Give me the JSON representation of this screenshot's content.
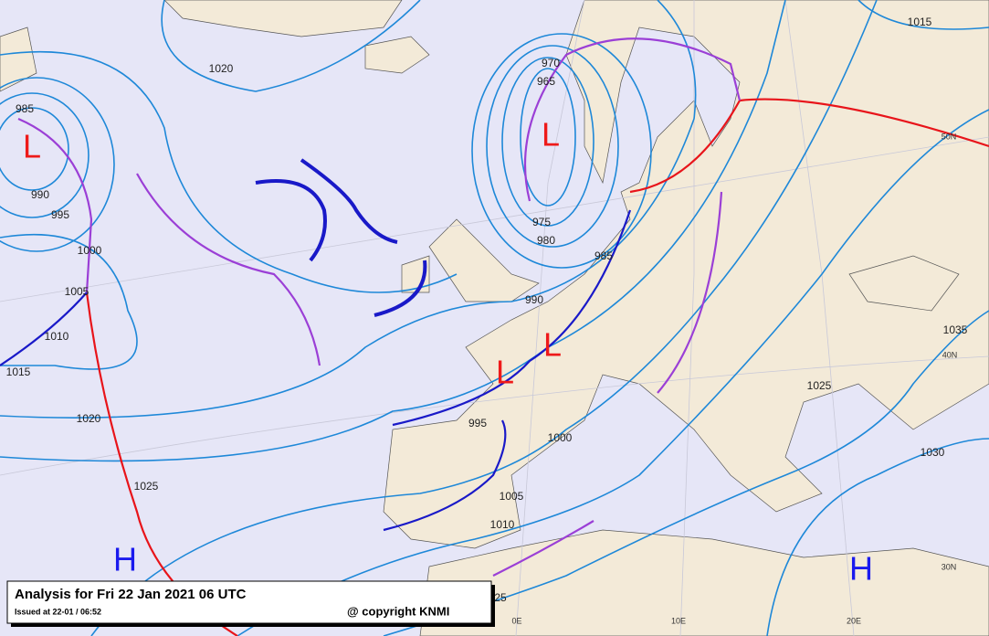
{
  "title_box": {
    "title": "Analysis for Fri 22 Jan 2021 06 UTC",
    "issued": "Issued at 22-01 / 06:52",
    "copyright": "@ copyright KNMI"
  },
  "pressure_centers": [
    "L",
    "L",
    "L",
    "L",
    "H",
    "H"
  ],
  "isobar_labels": [
    "1015",
    "1020",
    "970",
    "965",
    "985",
    "990",
    "995",
    "975",
    "980",
    "985",
    "1000",
    "1005",
    "990",
    "1010",
    "1015",
    "1035",
    "1025",
    "1020",
    "995",
    "1000",
    "1030",
    "1025",
    "1005",
    "1010",
    "25"
  ],
  "graticule_labels": [
    "50N",
    "40N",
    "30N",
    "0E",
    "10E",
    "20E"
  ]
}
